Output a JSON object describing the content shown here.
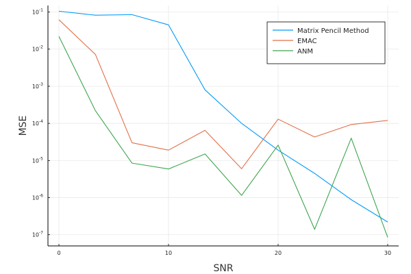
{
  "chart_data": {
    "type": "line",
    "xlabel": "SNR",
    "ylabel": "MSE",
    "xlim": [
      -1,
      31
    ],
    "ylim": [
      5e-08,
      0.15
    ],
    "yscale": "log",
    "grid": true,
    "legend_position": "top-right",
    "x_ticks": [
      0,
      10,
      20,
      30
    ],
    "x_tick_labels": [
      "0",
      "10",
      "20",
      "30"
    ],
    "y_ticks": [
      1e-07,
      1e-06,
      1e-05,
      0.0001,
      0.001,
      0.01,
      0.1
    ],
    "y_tick_labels": [
      {
        "base": "10",
        "exp": "-7"
      },
      {
        "base": "10",
        "exp": "-6"
      },
      {
        "base": "10",
        "exp": "-5"
      },
      {
        "base": "10",
        "exp": "-4"
      },
      {
        "base": "10",
        "exp": "-3"
      },
      {
        "base": "10",
        "exp": "-2"
      },
      {
        "base": "10",
        "exp": "-1"
      }
    ],
    "x": [
      0,
      3.33,
      6.67,
      10,
      13.33,
      16.67,
      20,
      23.33,
      26.67,
      30
    ],
    "series": [
      {
        "name": "Matrix Pencil Method",
        "color": "#009AFA",
        "values": [
          0.105,
          0.082,
          0.085,
          0.045,
          0.0008,
          0.0001,
          1.9e-05,
          4.5e-06,
          8.8e-07,
          2.2e-07
        ]
      },
      {
        "name": "EMAC",
        "color": "#E26F46",
        "values": [
          0.062,
          0.0072,
          3e-05,
          1.9e-05,
          6.5e-05,
          6e-06,
          0.00013,
          4.3e-05,
          9.3e-05,
          0.00012
        ]
      },
      {
        "name": "ANM",
        "color": "#3DA44E",
        "values": [
          0.022,
          0.00022,
          8.5e-06,
          5.9e-06,
          1.5e-05,
          1.15e-06,
          2.6e-05,
          1.4e-07,
          4e-05,
          8.5e-08
        ]
      }
    ]
  }
}
